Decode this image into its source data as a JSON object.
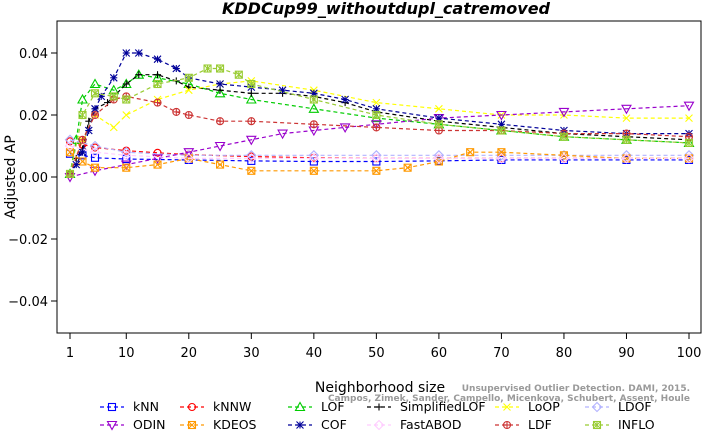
{
  "chart_data": {
    "type": "line",
    "title": "KDDCup99_withoutdupl_catremoved",
    "xlabel": "Neighborhood size",
    "ylabel": "Adjusted AP",
    "xlim": [
      1,
      100
    ],
    "ylim": [
      -0.05,
      0.045
    ],
    "x_ticks": [
      1,
      10,
      20,
      30,
      40,
      50,
      60,
      70,
      80,
      90,
      100
    ],
    "y_ticks": [
      -0.04,
      -0.02,
      0.0,
      0.02,
      0.04
    ],
    "y_tick_labels": [
      "−0.04",
      "−0.02",
      "0.00",
      "0.02",
      "0.04"
    ],
    "grid": false,
    "legend_position": "bottom",
    "watermark": [
      "Unsupervised Outlier Detection. DAMI, 2015.",
      "Campos, Zimek, Sander, Campello, Micenkova, Schubert, Assent, Houle"
    ],
    "series": [
      {
        "name": "kNN",
        "color": "#0000ff",
        "marker": "square",
        "points": [
          [
            1,
            0.0075
          ],
          [
            3,
            0.007
          ],
          [
            5,
            0.0062
          ],
          [
            10,
            0.0058
          ],
          [
            20,
            0.0055
          ],
          [
            30,
            0.0052
          ],
          [
            40,
            0.005
          ],
          [
            50,
            0.005
          ],
          [
            60,
            0.0052
          ],
          [
            70,
            0.0055
          ],
          [
            80,
            0.0055
          ],
          [
            90,
            0.0055
          ],
          [
            100,
            0.0055
          ]
        ]
      },
      {
        "name": "kNNW",
        "color": "#ff0000",
        "marker": "circle",
        "points": [
          [
            1,
            0.0115
          ],
          [
            3,
            0.0105
          ],
          [
            5,
            0.0095
          ],
          [
            10,
            0.0085
          ],
          [
            15,
            0.0078
          ],
          [
            20,
            0.0072
          ],
          [
            30,
            0.0066
          ],
          [
            40,
            0.0062
          ],
          [
            50,
            0.006
          ],
          [
            60,
            0.006
          ],
          [
            70,
            0.006
          ],
          [
            80,
            0.006
          ],
          [
            90,
            0.006
          ],
          [
            100,
            0.006
          ]
        ]
      },
      {
        "name": "LOF",
        "color": "#00cc00",
        "marker": "triangle-up",
        "points": [
          [
            1,
            0.001
          ],
          [
            2,
            0.012
          ],
          [
            3,
            0.025
          ],
          [
            5,
            0.03
          ],
          [
            8,
            0.028
          ],
          [
            10,
            0.03
          ],
          [
            12,
            0.033
          ],
          [
            15,
            0.032
          ],
          [
            20,
            0.03
          ],
          [
            25,
            0.027
          ],
          [
            30,
            0.025
          ],
          [
            40,
            0.022
          ],
          [
            50,
            0.019
          ],
          [
            60,
            0.017
          ],
          [
            70,
            0.015
          ],
          [
            80,
            0.013
          ],
          [
            90,
            0.012
          ],
          [
            100,
            0.011
          ]
        ]
      },
      {
        "name": "SimplifiedLOF",
        "color": "#000000",
        "marker": "plus",
        "points": [
          [
            1,
            0.001
          ],
          [
            2,
            0.006
          ],
          [
            3,
            0.009
          ],
          [
            4,
            0.018
          ],
          [
            5,
            0.022
          ],
          [
            7,
            0.024
          ],
          [
            10,
            0.03
          ],
          [
            12,
            0.033
          ],
          [
            15,
            0.033
          ],
          [
            18,
            0.031
          ],
          [
            20,
            0.029
          ],
          [
            25,
            0.028
          ],
          [
            30,
            0.027
          ],
          [
            35,
            0.027
          ],
          [
            40,
            0.026
          ],
          [
            45,
            0.024
          ],
          [
            50,
            0.021
          ],
          [
            60,
            0.018
          ],
          [
            70,
            0.016
          ],
          [
            80,
            0.014
          ],
          [
            90,
            0.013
          ],
          [
            100,
            0.012
          ]
        ]
      },
      {
        "name": "LoOP",
        "color": "#ffff00",
        "marker": "x",
        "points": [
          [
            1,
            0.001
          ],
          [
            3,
            0.012
          ],
          [
            5,
            0.02
          ],
          [
            8,
            0.016
          ],
          [
            10,
            0.02
          ],
          [
            15,
            0.025
          ],
          [
            20,
            0.028
          ],
          [
            25,
            0.03
          ],
          [
            30,
            0.031
          ],
          [
            40,
            0.028
          ],
          [
            50,
            0.024
          ],
          [
            60,
            0.022
          ],
          [
            70,
            0.02
          ],
          [
            80,
            0.02
          ],
          [
            90,
            0.019
          ],
          [
            100,
            0.019
          ]
        ]
      },
      {
        "name": "LDOF",
        "color": "#b2b2ff",
        "marker": "diamond",
        "points": [
          [
            1,
            0.012
          ],
          [
            5,
            0.01
          ],
          [
            10,
            0.008
          ],
          [
            20,
            0.007
          ],
          [
            30,
            0.007
          ],
          [
            40,
            0.007
          ],
          [
            50,
            0.007
          ],
          [
            60,
            0.007
          ],
          [
            70,
            0.007
          ],
          [
            80,
            0.007
          ],
          [
            90,
            0.007
          ],
          [
            100,
            0.007
          ]
        ]
      },
      {
        "name": "ODIN",
        "color": "#9900cc",
        "marker": "triangle-down",
        "points": [
          [
            1,
            0.0
          ],
          [
            5,
            0.002
          ],
          [
            10,
            0.004
          ],
          [
            15,
            0.006
          ],
          [
            20,
            0.008
          ],
          [
            25,
            0.01
          ],
          [
            30,
            0.012
          ],
          [
            35,
            0.014
          ],
          [
            40,
            0.015
          ],
          [
            45,
            0.016
          ],
          [
            50,
            0.017
          ],
          [
            60,
            0.019
          ],
          [
            70,
            0.02
          ],
          [
            80,
            0.021
          ],
          [
            90,
            0.022
          ],
          [
            100,
            0.023
          ]
        ]
      },
      {
        "name": "KDEOS",
        "color": "#ff9900",
        "marker": "square-x",
        "points": [
          [
            1,
            0.008
          ],
          [
            3,
            0.005
          ],
          [
            5,
            0.003
          ],
          [
            10,
            0.003
          ],
          [
            15,
            0.004
          ],
          [
            20,
            0.006
          ],
          [
            25,
            0.004
          ],
          [
            30,
            0.002
          ],
          [
            40,
            0.002
          ],
          [
            50,
            0.002
          ],
          [
            55,
            0.003
          ],
          [
            60,
            0.005
          ],
          [
            65,
            0.008
          ],
          [
            70,
            0.008
          ],
          [
            80,
            0.007
          ],
          [
            90,
            0.006
          ],
          [
            100,
            0.006
          ]
        ]
      },
      {
        "name": "COF",
        "color": "#000099",
        "marker": "asterisk",
        "points": [
          [
            1,
            0.001
          ],
          [
            2,
            0.004
          ],
          [
            3,
            0.008
          ],
          [
            4,
            0.015
          ],
          [
            5,
            0.022
          ],
          [
            6,
            0.026
          ],
          [
            8,
            0.032
          ],
          [
            10,
            0.04
          ],
          [
            12,
            0.04
          ],
          [
            15,
            0.038
          ],
          [
            18,
            0.035
          ],
          [
            20,
            0.032
          ],
          [
            25,
            0.03
          ],
          [
            30,
            0.029
          ],
          [
            35,
            0.028
          ],
          [
            40,
            0.027
          ],
          [
            45,
            0.025
          ],
          [
            50,
            0.022
          ],
          [
            60,
            0.019
          ],
          [
            70,
            0.017
          ],
          [
            80,
            0.015
          ],
          [
            90,
            0.014
          ],
          [
            100,
            0.014
          ]
        ]
      },
      {
        "name": "FastABOD",
        "color": "#ffccff",
        "marker": "diamond",
        "points": [
          [
            1,
            0.01
          ],
          [
            5,
            0.008
          ],
          [
            10,
            0.007
          ],
          [
            20,
            0.006
          ],
          [
            30,
            0.006
          ],
          [
            40,
            0.006
          ],
          [
            50,
            0.006
          ],
          [
            60,
            0.006
          ],
          [
            70,
            0.006
          ],
          [
            80,
            0.006
          ],
          [
            90,
            0.006
          ],
          [
            100,
            0.006
          ]
        ]
      },
      {
        "name": "LDF",
        "color": "#cc3333",
        "marker": "circle-plus",
        "points": [
          [
            1,
            0.001
          ],
          [
            3,
            0.012
          ],
          [
            5,
            0.02
          ],
          [
            8,
            0.025
          ],
          [
            10,
            0.026
          ],
          [
            15,
            0.024
          ],
          [
            18,
            0.021
          ],
          [
            20,
            0.02
          ],
          [
            25,
            0.018
          ],
          [
            30,
            0.018
          ],
          [
            40,
            0.017
          ],
          [
            50,
            0.016
          ],
          [
            60,
            0.015
          ],
          [
            70,
            0.015
          ],
          [
            80,
            0.014
          ],
          [
            90,
            0.014
          ],
          [
            100,
            0.013
          ]
        ]
      },
      {
        "name": "INFLO",
        "color": "#99cc33",
        "marker": "square-star",
        "points": [
          [
            1,
            0.001
          ],
          [
            3,
            0.02
          ],
          [
            5,
            0.027
          ],
          [
            8,
            0.026
          ],
          [
            10,
            0.025
          ],
          [
            15,
            0.03
          ],
          [
            20,
            0.032
          ],
          [
            23,
            0.035
          ],
          [
            25,
            0.035
          ],
          [
            28,
            0.033
          ],
          [
            30,
            0.03
          ],
          [
            40,
            0.025
          ],
          [
            50,
            0.02
          ],
          [
            60,
            0.017
          ],
          [
            70,
            0.015
          ],
          [
            80,
            0.013
          ],
          [
            90,
            0.012
          ],
          [
            100,
            0.011
          ]
        ]
      }
    ]
  }
}
